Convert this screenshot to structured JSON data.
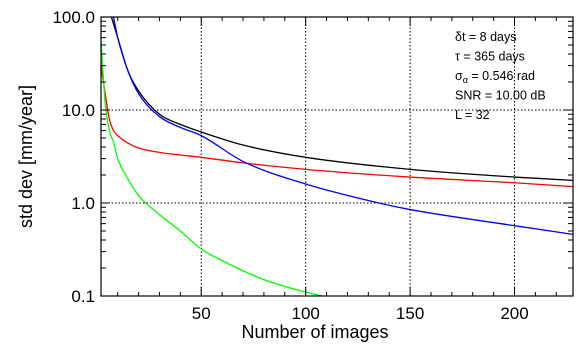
{
  "chart_data": {
    "type": "line",
    "title": "",
    "xlabel": "Number of images",
    "ylabel": "std dev [mm/year]",
    "xlim": [
      2,
      228
    ],
    "ylim": [
      0.1,
      100
    ],
    "yscale": "log",
    "x_ticks": [
      50,
      100,
      150,
      200
    ],
    "x_tick_labels": [
      "50",
      "100",
      "150",
      "200"
    ],
    "y_ticks": [
      0.1,
      1,
      10,
      100
    ],
    "y_tick_labels": [
      "0.1",
      "1.0",
      "10.0",
      "100.0"
    ],
    "grid": {
      "vertical_at": [
        50,
        100,
        150,
        200
      ],
      "horizontal_at": [
        1,
        10
      ],
      "style": "dotted"
    },
    "annotations": [
      {
        "id": "dt",
        "sym": "δt",
        "text": " = 8 days"
      },
      {
        "id": "tau",
        "sym": "τ",
        "text": " = 365 days"
      },
      {
        "id": "sigma",
        "sym": "σ",
        "sub": "α",
        "text": " = 0.546 rad"
      },
      {
        "id": "snr",
        "sym": "",
        "text": "SNR = 10.00 dB"
      },
      {
        "id": "L",
        "sym": "",
        "text": "L = 32"
      }
    ],
    "series": [
      {
        "color": "#000000",
        "x": [
          7,
          10,
          15,
          20,
          30,
          40,
          50,
          70,
          100,
          150,
          200,
          228
        ],
        "y": [
          100,
          60,
          26,
          16,
          9,
          7,
          5.8,
          4.2,
          3.1,
          2.3,
          1.9,
          1.75
        ]
      },
      {
        "color": "#ff0000",
        "x": [
          2,
          4,
          6,
          8,
          10,
          15,
          20,
          30,
          50,
          70,
          100,
          150,
          200,
          228
        ],
        "y": [
          30,
          15,
          8,
          6,
          5.3,
          4.4,
          3.9,
          3.5,
          3.1,
          2.7,
          2.3,
          1.9,
          1.65,
          1.5
        ]
      },
      {
        "color": "#0000ff",
        "x": [
          8,
          10,
          15,
          20,
          30,
          40,
          50,
          70,
          100,
          135,
          150,
          200,
          228
        ],
        "y": [
          100,
          60,
          26,
          15,
          8.5,
          6.5,
          5.3,
          2.8,
          1.6,
          1.0,
          0.85,
          0.57,
          0.46
        ]
      },
      {
        "color": "#00ff00",
        "x": [
          2,
          4,
          6,
          8,
          10,
          15,
          20,
          30,
          40,
          50,
          60,
          80,
          100,
          108
        ],
        "y": [
          55,
          12,
          6,
          4.5,
          3.0,
          1.8,
          1.2,
          0.75,
          0.5,
          0.32,
          0.24,
          0.15,
          0.11,
          0.1
        ]
      }
    ]
  }
}
